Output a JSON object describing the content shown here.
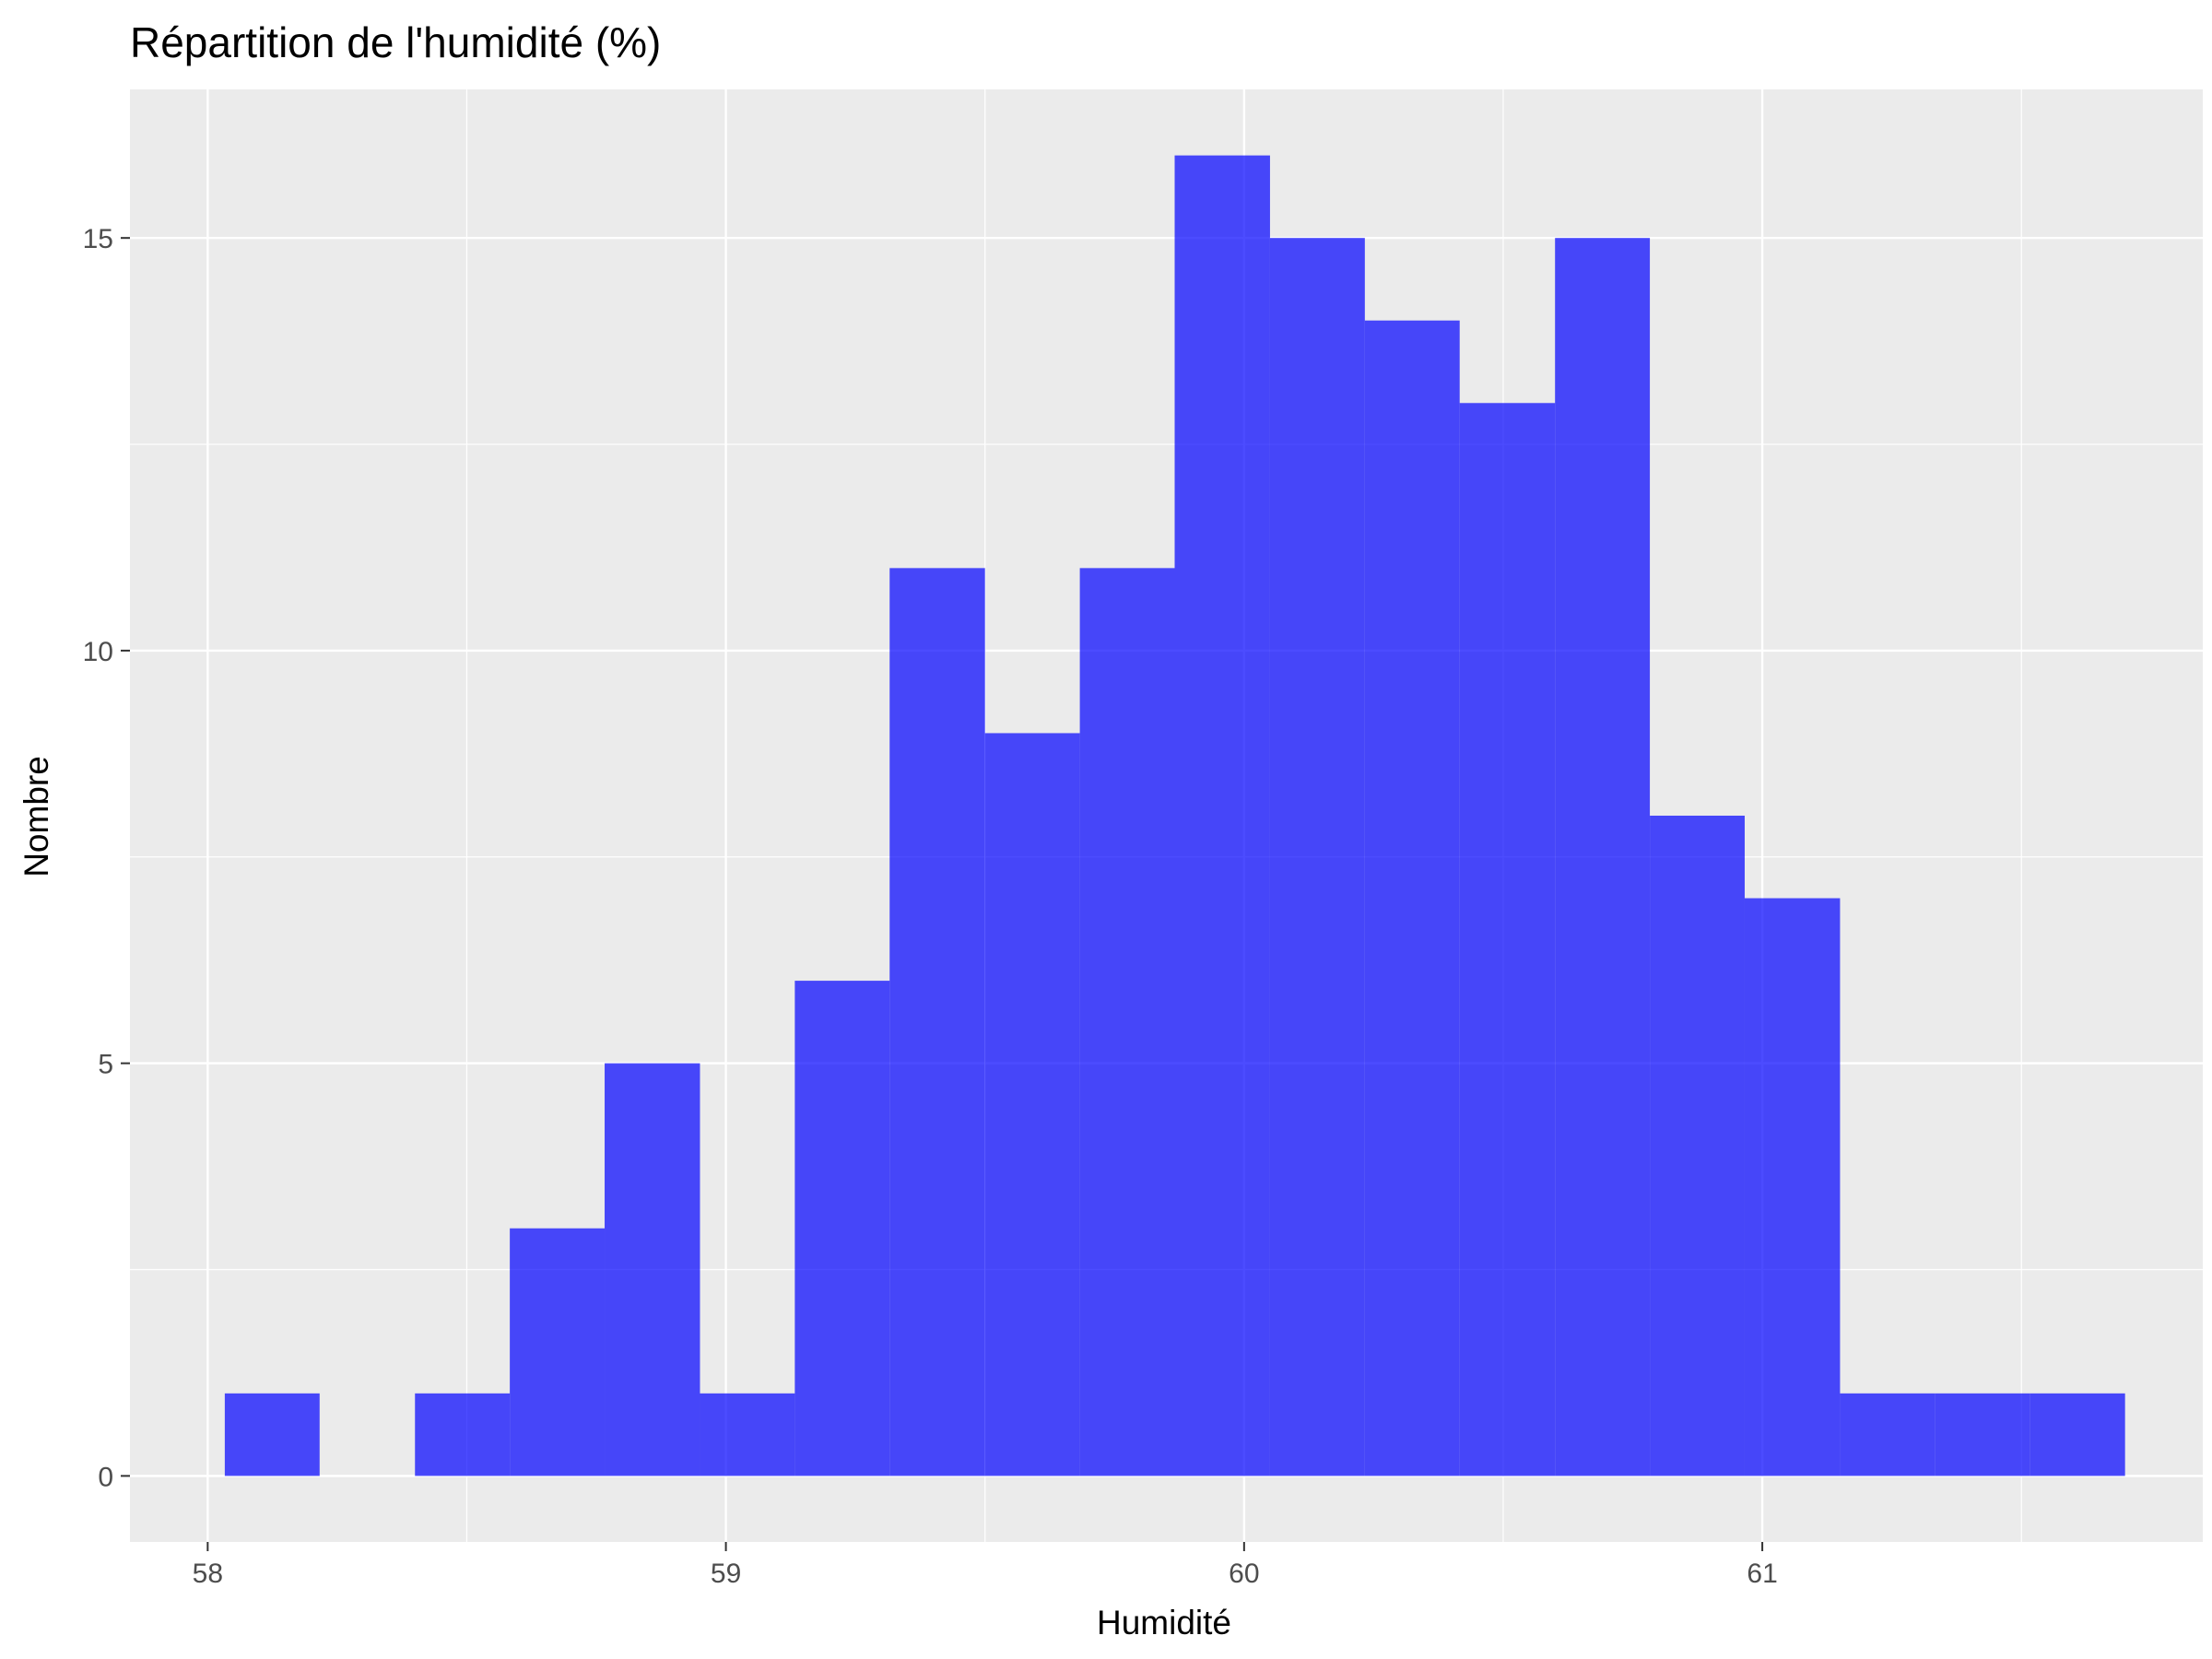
{
  "chart_data": {
    "type": "bar",
    "subtype": "histogram",
    "title": "Répartition de l'humidité (%)",
    "xlabel": "Humidité",
    "ylabel": "Nombre",
    "xlim": [
      57.85,
      61.85
    ],
    "ylim": [
      -0.8,
      16.8
    ],
    "x_ticks": [
      58,
      59,
      60,
      61
    ],
    "x_tick_labels": [
      "58",
      "59",
      "60",
      "61"
    ],
    "x_minor_ticks": [
      58.5,
      59.5,
      60.5,
      61.5
    ],
    "y_ticks": [
      0,
      5,
      10,
      15
    ],
    "y_tick_labels": [
      "0",
      "5",
      "10",
      "15"
    ],
    "y_minor_ticks": [
      2.5,
      7.5,
      12.5
    ],
    "grid": true,
    "panel_background": "#ebebeb",
    "grid_color": "#ffffff",
    "bar_color": "#0000ff",
    "bar_opacity": 0.7,
    "bin_width": 0.183,
    "bins": [
      {
        "x_start": 58.033,
        "x_end": 58.216,
        "count": 1
      },
      {
        "x_start": 58.216,
        "x_end": 58.4,
        "count": 0
      },
      {
        "x_start": 58.4,
        "x_end": 58.583,
        "count": 1
      },
      {
        "x_start": 58.583,
        "x_end": 58.766,
        "count": 3
      },
      {
        "x_start": 58.766,
        "x_end": 58.95,
        "count": 5
      },
      {
        "x_start": 58.95,
        "x_end": 59.133,
        "count": 1
      },
      {
        "x_start": 59.133,
        "x_end": 59.316,
        "count": 6
      },
      {
        "x_start": 59.316,
        "x_end": 59.5,
        "count": 11
      },
      {
        "x_start": 59.5,
        "x_end": 59.683,
        "count": 9
      },
      {
        "x_start": 59.683,
        "x_end": 59.866,
        "count": 11
      },
      {
        "x_start": 59.866,
        "x_end": 60.05,
        "count": 16
      },
      {
        "x_start": 60.05,
        "x_end": 60.233,
        "count": 15
      },
      {
        "x_start": 60.233,
        "x_end": 60.416,
        "count": 14
      },
      {
        "x_start": 60.416,
        "x_end": 60.6,
        "count": 13
      },
      {
        "x_start": 60.6,
        "x_end": 60.783,
        "count": 15
      },
      {
        "x_start": 60.783,
        "x_end": 60.966,
        "count": 8
      },
      {
        "x_start": 60.966,
        "x_end": 61.15,
        "count": 7
      },
      {
        "x_start": 61.15,
        "x_end": 61.333,
        "count": 1
      },
      {
        "x_start": 61.333,
        "x_end": 61.516,
        "count": 1
      },
      {
        "x_start": 61.516,
        "x_end": 61.7,
        "count": 1
      }
    ]
  }
}
